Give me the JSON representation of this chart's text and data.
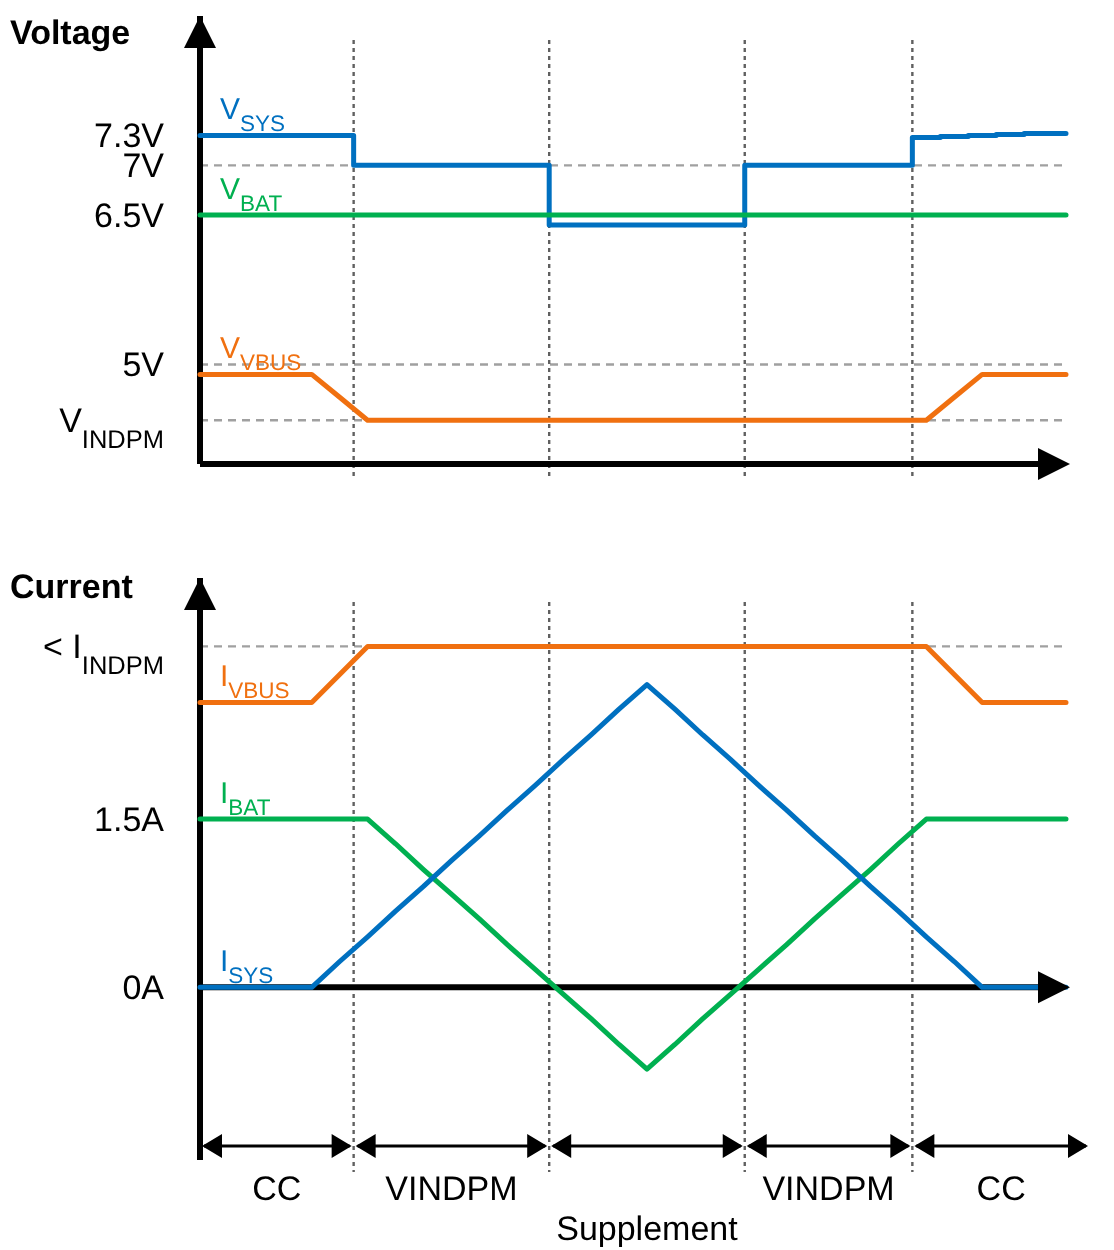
{
  "chart_data": [
    {
      "type": "line",
      "title": "Voltage",
      "categories": [
        null,
        null,
        null,
        null,
        null,
        null,
        null,
        null,
        null,
        null,
        null,
        null,
        null,
        null,
        null,
        null,
        null,
        null,
        null,
        null,
        null,
        null,
        null,
        null,
        null,
        null,
        null,
        null,
        null,
        null,
        null,
        null
      ],
      "ylim": [
        4,
        8.5
      ],
      "yticks": [
        {
          "value": 7.3,
          "label": "7.3V"
        },
        {
          "value": 7,
          "label": "7V"
        },
        {
          "value": 6.5,
          "label": "6.5V"
        },
        {
          "value": 5,
          "label": "5V"
        },
        {
          "value": 4.44,
          "label": "V$_{INDPM}$"
        }
      ],
      "grid": false,
      "legend": false,
      "series": [
        {
          "name": "V$_{SYS}$",
          "type": "step",
          "color": "#0070c0",
          "values": [
            7.3,
            7.3,
            7.3,
            7.3,
            7.3,
            7.3,
            7,
            7,
            7,
            7,
            7,
            7,
            7,
            6.4,
            6.4,
            6.4,
            6.4,
            6.4,
            6.4,
            6.4,
            7,
            7,
            7,
            7,
            7,
            7,
            7.28,
            7.29,
            7.3,
            7.31,
            7.32,
            7.32
          ]
        },
        {
          "name": "V$_{BAT}$",
          "color": "#00b050",
          "values": [
            6.5,
            6.5,
            6.5,
            6.5,
            6.5,
            6.5,
            6.5,
            6.5,
            6.5,
            6.5,
            6.5,
            6.5,
            6.5,
            6.5,
            6.5,
            6.5,
            6.5,
            6.5,
            6.5,
            6.5,
            6.5,
            6.5,
            6.5,
            6.5,
            6.5,
            6.5,
            6.5,
            6.5,
            6.5,
            6.5,
            6.5,
            6.5
          ]
        },
        {
          "name": "V$_{VBUS}$",
          "color": "#f07010",
          "values": [
            4.9,
            4.9,
            4.9,
            4.9,
            4.9,
            4.67,
            4.44,
            4.44,
            4.44,
            4.44,
            4.44,
            4.44,
            4.44,
            4.44,
            4.44,
            4.44,
            4.44,
            4.44,
            4.44,
            4.44,
            4.44,
            4.44,
            4.44,
            4.44,
            4.44,
            4.44,
            4.44,
            4.67,
            4.9,
            4.9,
            4.9,
            4.9
          ]
        }
      ],
      "ref_lines": [
        {
          "axis": "y",
          "value": 7,
          "line_style": "dashed",
          "color": "#a0a0a0"
        },
        {
          "axis": "y",
          "value": 5,
          "line_style": "dashed",
          "color": "#a0a0a0"
        },
        {
          "axis": "y",
          "value": 4.44,
          "line_style": "dashed",
          "color": "#a0a0a0"
        }
      ]
    },
    {
      "type": "line",
      "title": "Current",
      "categories": [
        null,
        null,
        null,
        null,
        null,
        null,
        null,
        null,
        null,
        null,
        null,
        null,
        null,
        null,
        null,
        null,
        null,
        null,
        null,
        null,
        null,
        null,
        null,
        null,
        null,
        null,
        null,
        null,
        null,
        null,
        null,
        null
      ],
      "ylim": [
        -1.54,
        3.65
      ],
      "yticks": [
        {
          "value": 3.04,
          "label": "< I$_{INDPM}$"
        },
        {
          "value": 1.5,
          "label": "1.5A"
        },
        {
          "value": 0,
          "label": "0A"
        }
      ],
      "grid": false,
      "legend": false,
      "series": [
        {
          "name": "I$_{VBUS}$",
          "color": "#f07010",
          "values": [
            2.54,
            2.54,
            2.54,
            2.54,
            2.54,
            2.79,
            3.04,
            3.04,
            3.04,
            3.04,
            3.04,
            3.04,
            3.04,
            3.04,
            3.04,
            3.04,
            3.04,
            3.04,
            3.04,
            3.04,
            3.04,
            3.04,
            3.04,
            3.04,
            3.04,
            3.04,
            3.04,
            2.79,
            2.54,
            2.54,
            2.54,
            2.54
          ]
        },
        {
          "name": "I$_{BAT}$",
          "color": "#00b050",
          "values": [
            1.5,
            1.5,
            1.5,
            1.5,
            1.5,
            1.5,
            1.5,
            1.28,
            1.05,
            0.83,
            0.61,
            0.38,
            0.16,
            -0.06,
            -0.28,
            -0.51,
            -0.73,
            -0.51,
            -0.28,
            -0.06,
            0.16,
            0.38,
            0.61,
            0.83,
            1.05,
            1.28,
            1.5,
            1.5,
            1.5,
            1.5,
            1.5,
            1.5
          ]
        },
        {
          "name": "I$_{SYS}$",
          "color": "#0070c0",
          "values": [
            0,
            0,
            0,
            0,
            0,
            0.23,
            0.45,
            0.68,
            0.9,
            1.13,
            1.35,
            1.58,
            1.8,
            2.03,
            2.25,
            2.48,
            2.7,
            2.48,
            2.25,
            2.03,
            1.8,
            1.58,
            1.35,
            1.13,
            0.9,
            0.68,
            0.45,
            0.23,
            0,
            0,
            0,
            0
          ]
        }
      ],
      "ref_lines": [
        {
          "axis": "y",
          "value": 3.04,
          "line_style": "dashed",
          "color": "#a0a0a0"
        }
      ],
      "annotations": [
        "CC",
        "VINDPM",
        "Supplement",
        "VINDPM",
        "CC"
      ]
    }
  ]
}
